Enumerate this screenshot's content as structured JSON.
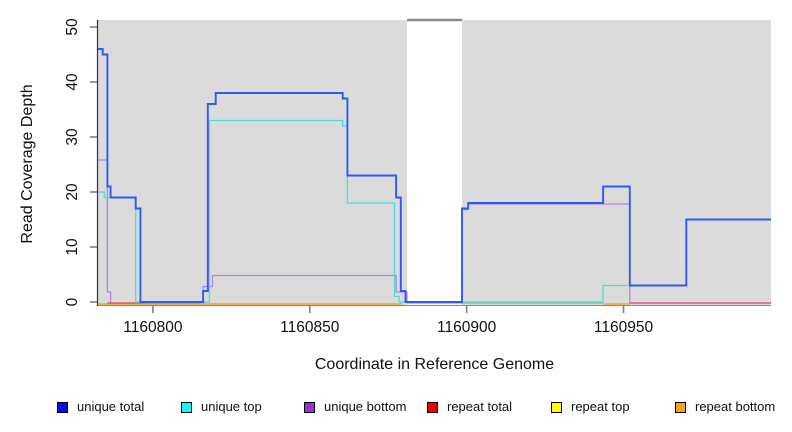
{
  "figure": {
    "xlabel": "Coordinate in Reference Genome",
    "ylabel": "Read Coverage Depth"
  },
  "legend": {
    "position": "bottom",
    "items": [
      {
        "label": "unique total",
        "color": "#0A0AEE"
      },
      {
        "label": "unique top",
        "color": "#00FFFF"
      },
      {
        "label": "unique bottom",
        "color": "#9932CC"
      },
      {
        "label": "repeat total",
        "color": "#EE0000"
      },
      {
        "label": "repeat top",
        "color": "#FFFF00"
      },
      {
        "label": "repeat bottom",
        "color": "#FFA30F"
      }
    ]
  },
  "chart_data": {
    "type": "line",
    "subtype": "step-coverage",
    "title": "",
    "xlabel": "Coordinate in Reference Genome",
    "ylabel": "Read Coverage Depth",
    "xlim": [
      1160782.5,
      1160997
    ],
    "ylim": [
      0,
      51.3
    ],
    "x_ticks": [
      1160800,
      1160850,
      1160900,
      1160950
    ],
    "y_ticks": [
      0,
      10,
      20,
      30,
      40,
      50
    ],
    "grid": false,
    "panel_background": "#DBDBDB",
    "masked_region": {
      "from": 1160881,
      "to": 1160898.5,
      "fill": "#FFFFFF",
      "top_border_color": "#8A8A8A"
    },
    "series": [
      {
        "name": "unique total",
        "color": "#2D5BF0",
        "segments": [
          [
            1160782.5,
            1160784,
            46
          ],
          [
            1160784,
            1160785.5,
            45
          ],
          [
            1160785.5,
            1160786.5,
            21
          ],
          [
            1160786.5,
            1160794.5,
            19
          ],
          [
            1160794.5,
            1160796,
            17
          ],
          [
            1160796,
            1160816,
            0
          ],
          [
            1160816,
            1160817.5,
            2
          ],
          [
            1160817.5,
            1160820,
            36
          ],
          [
            1160820,
            1160860.5,
            38
          ],
          [
            1160860.5,
            1160862,
            37
          ],
          [
            1160862,
            1160877.5,
            23
          ],
          [
            1160877.5,
            1160879,
            19
          ],
          [
            1160879,
            1160880.5,
            2
          ],
          [
            1160880.5,
            1160898.5,
            0
          ],
          [
            1160898.5,
            1160900.5,
            17
          ],
          [
            1160900.5,
            1160943.5,
            18
          ],
          [
            1160943.5,
            1160952,
            21
          ],
          [
            1160952,
            1160970,
            3
          ],
          [
            1160970,
            1160997,
            15
          ]
        ]
      },
      {
        "name": "unique top",
        "color": "#52D9DD",
        "segments": [
          [
            1160782.5,
            1160784.5,
            20
          ],
          [
            1160784.5,
            1160794.5,
            19
          ],
          [
            1160794.5,
            1160818,
            0
          ],
          [
            1160818,
            1160860.5,
            33
          ],
          [
            1160860.5,
            1160862,
            32
          ],
          [
            1160862,
            1160877,
            18
          ],
          [
            1160877,
            1160878.5,
            1
          ],
          [
            1160878.5,
            1160943.5,
            0
          ],
          [
            1160943.5,
            1160951.5,
            3
          ]
        ]
      },
      {
        "name": "unique bottom",
        "color": "#B286DC",
        "segments": [
          [
            1160782.5,
            1160785.5,
            26
          ],
          [
            1160785.5,
            1160786.5,
            2
          ],
          [
            1160786.5,
            1160816,
            0
          ],
          [
            1160816,
            1160819,
            3
          ],
          [
            1160819,
            1160877.5,
            5
          ],
          [
            1160877.5,
            1160881,
            2
          ],
          [
            1160881,
            1160898.5,
            0
          ],
          [
            1160898.5,
            1160900.5,
            17
          ],
          [
            1160900.5,
            1160952,
            18
          ],
          [
            1160952,
            1160997,
            0
          ]
        ]
      },
      {
        "name": "repeat total",
        "color": "#E04A6F",
        "segments": [
          [
            1160785.5,
            1160797.5,
            0
          ],
          [
            1160952,
            1160997,
            0
          ]
        ]
      },
      {
        "name": "repeat top",
        "color": "#85C985",
        "segments": [
          [
            1160898.5,
            1160943.5,
            0
          ]
        ]
      },
      {
        "name": "repeat bottom",
        "color": "#FFA019",
        "segments": [
          [
            1160782.5,
            1160879.5,
            0
          ],
          [
            1160943.5,
            1160952,
            0
          ]
        ]
      }
    ]
  }
}
